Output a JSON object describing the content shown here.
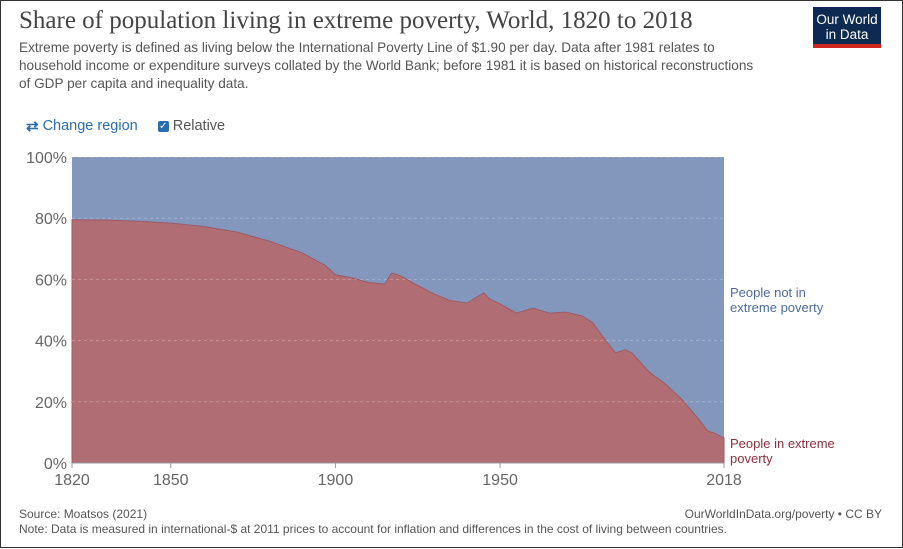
{
  "header": {
    "title": "Share of population living in extreme poverty, World, 1820 to 2018",
    "subtitle": "Extreme poverty is defined as living below the International Poverty Line of $1.90 per day. Data after 1981 relates to household income or expenditure surveys collated by the World Bank; before 1981 it is based on historical reconstructions of GDP per capita and inequality data.",
    "logo_text": "Our World in Data"
  },
  "controls": {
    "change_region": "Change region",
    "change_region_icon": "swap-arrows-icon",
    "relative": "Relative",
    "relative_checked": true
  },
  "footer": {
    "source": "Source: Moatsos (2021)",
    "note": "Note: Data is measured in international-$ at 2011 prices to account for inflation and differences in the cost of living between countries.",
    "credit": "OurWorldInData.org/poverty • CC BY"
  },
  "colors": {
    "poverty": "#b06e74",
    "not_poverty": "#8397bd",
    "poverty_label": "#8b2f3c",
    "not_poverty_label": "#4c6a9c"
  },
  "chart_data": {
    "type": "area",
    "stacked": true,
    "relative": true,
    "title": "Share of population living in extreme poverty, World, 1820 to 2018",
    "xlim": [
      1820,
      2018
    ],
    "ylim": [
      0,
      100
    ],
    "x_ticks": [
      "1820",
      "1850",
      "1900",
      "1950",
      "2018"
    ],
    "y_ticks": [
      "0%",
      "20%",
      "40%",
      "60%",
      "80%",
      "100%"
    ],
    "grid": true,
    "x": [
      1820,
      1830,
      1840,
      1850,
      1860,
      1870,
      1880,
      1890,
      1897,
      1900,
      1905,
      1910,
      1915,
      1917,
      1918,
      1920,
      1925,
      1930,
      1935,
      1940,
      1945,
      1947,
      1950,
      1955,
      1960,
      1965,
      1970,
      1975,
      1978,
      1980,
      1985,
      1988,
      1990,
      1995,
      1997,
      2000,
      2005,
      2010,
      2013,
      2015,
      2018
    ],
    "series": [
      {
        "name": "People in extreme poverty",
        "values": [
          79.5,
          79.4,
          79.0,
          78.4,
          77.3,
          75.5,
          72.5,
          68.6,
          64.5,
          61.5,
          60.5,
          59,
          58.5,
          62,
          61.8,
          61,
          58,
          55.2,
          53,
          52.3,
          55.6,
          53.5,
          52,
          49,
          50.6,
          49,
          49.3,
          48,
          46,
          43,
          36,
          37,
          36,
          30,
          28.4,
          26,
          21,
          14.7,
          10.5,
          9.8,
          8.2
        ]
      },
      {
        "name": "People not in extreme poverty",
        "values": [
          20.5,
          20.6,
          21.0,
          21.6,
          22.7,
          24.5,
          27.5,
          31.4,
          35.5,
          38.5,
          39.5,
          41,
          41.5,
          38,
          38.2,
          39,
          42,
          44.8,
          47,
          47.7,
          44.4,
          46.5,
          48,
          51,
          49.4,
          51,
          50.7,
          52,
          54,
          57,
          64,
          63,
          64,
          70,
          71.6,
          74,
          79,
          85.3,
          89.5,
          90.2,
          91.8
        ]
      }
    ]
  }
}
